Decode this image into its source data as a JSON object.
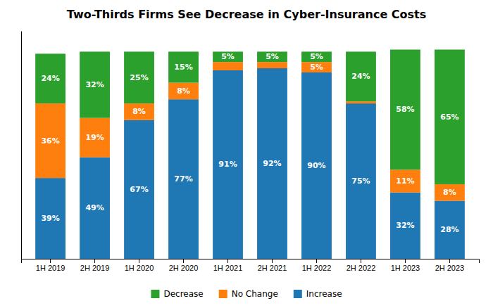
{
  "chart_data": {
    "type": "bar",
    "stacked": true,
    "title": "Two-Thirds Firms See Decrease in Cyber-Insurance Costs",
    "categories": [
      "1H 2019",
      "2H 2019",
      "1H 2020",
      "2H 2020",
      "1H 2021",
      "2H 2021",
      "1H 2022",
      "2H 2022",
      "1H 2023",
      "2H 2023"
    ],
    "series": [
      {
        "name": "Increase",
        "values": [
          39,
          49,
          67,
          77,
          91,
          92,
          90,
          75,
          32,
          28
        ],
        "value_labels": [
          "39%",
          "49%",
          "67%",
          "77%",
          "91%",
          "92%",
          "90%",
          "75%",
          "32%",
          "28%"
        ]
      },
      {
        "name": "No Change",
        "values": [
          36,
          19,
          8,
          8,
          4,
          3,
          5,
          1,
          11,
          8
        ],
        "value_labels": [
          "36%",
          "19%",
          "8%",
          "8%",
          null,
          null,
          "5%",
          null,
          "11%",
          "8%"
        ]
      },
      {
        "name": "Decrease",
        "values": [
          24,
          32,
          25,
          15,
          5,
          5,
          5,
          24,
          58,
          65
        ],
        "value_labels": [
          "24%",
          "32%",
          "25%",
          "15%",
          "5%",
          "5%",
          "5%",
          "24%",
          "58%",
          "65%"
        ]
      }
    ],
    "ylim": [
      0,
      110
    ],
    "tick_labels": "x",
    "data_labels": true,
    "legend": "bottom"
  }
}
